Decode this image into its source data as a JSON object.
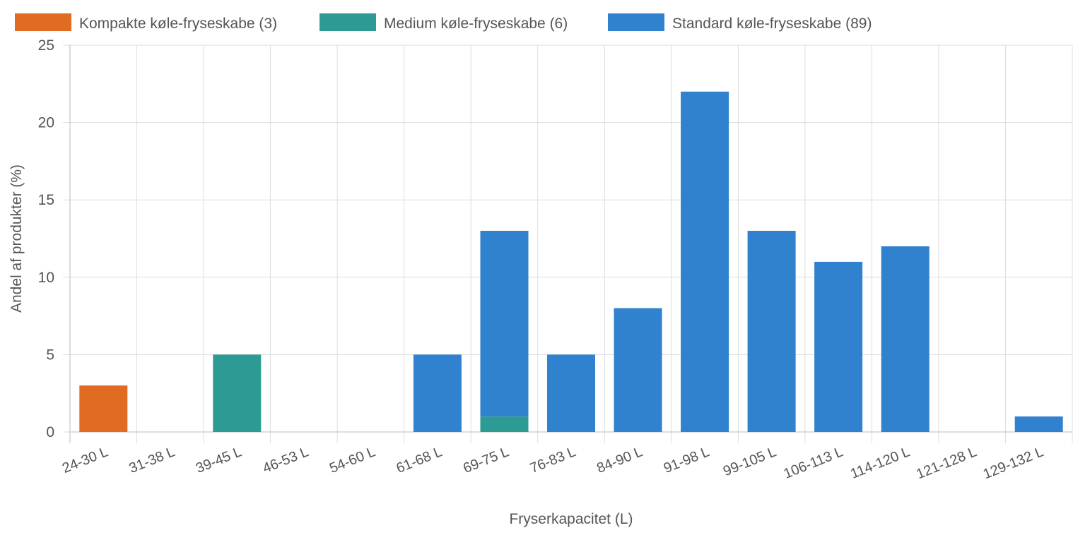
{
  "chart_data": {
    "type": "bar",
    "stacked": true,
    "categories": [
      "24-30 L",
      "31-38 L",
      "39-45 L",
      "46-53 L",
      "54-60 L",
      "61-68 L",
      "69-75 L",
      "76-83 L",
      "84-90 L",
      "91-98 L",
      "99-105 L",
      "106-113 L",
      "114-120 L",
      "121-128 L",
      "129-132 L"
    ],
    "series": [
      {
        "name": "Kompakte køle-fryseskabe (3)",
        "color": "#e06c22",
        "values": [
          3,
          0,
          0,
          0,
          0,
          0,
          0,
          0,
          0,
          0,
          0,
          0,
          0,
          0,
          0
        ]
      },
      {
        "name": "Medium køle-fryseskabe (6)",
        "color": "#2e9a94",
        "values": [
          0,
          0,
          5,
          0,
          0,
          0,
          1,
          0,
          0,
          0,
          0,
          0,
          0,
          0,
          0
        ]
      },
      {
        "name": "Standard køle-fryseskabe (89)",
        "color": "#3182ce",
        "values": [
          0,
          0,
          0,
          0,
          0,
          5,
          12,
          5,
          8,
          22,
          13,
          11,
          12,
          0,
          1
        ]
      }
    ],
    "xlabel": "Fryserkapacitet (L)",
    "ylabel": "Andel af produkter (%)",
    "ylim": [
      0,
      25
    ],
    "yticks": [
      0,
      5,
      10,
      15,
      20,
      25
    ],
    "grid": true,
    "legend": "top-left"
  }
}
